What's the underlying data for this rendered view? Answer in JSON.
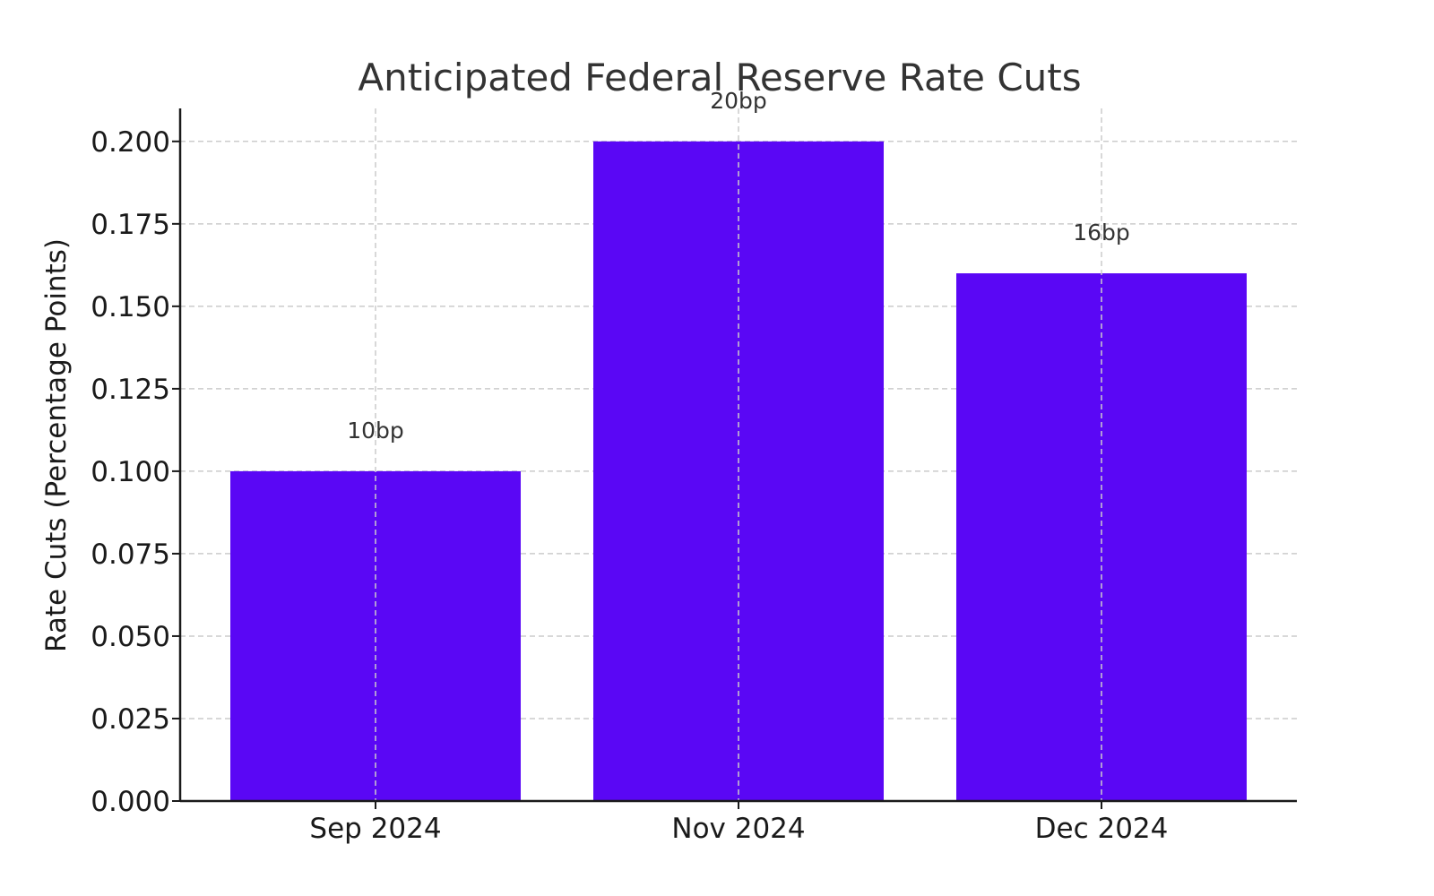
{
  "chart_data": {
    "type": "bar",
    "title": "Anticipated Federal Reserve Rate Cuts",
    "xlabel": "",
    "ylabel": "Rate Cuts (Percentage Points)",
    "categories": [
      "Sep 2024",
      "Nov 2024",
      "Dec 2024"
    ],
    "values": [
      0.1,
      0.2,
      0.16
    ],
    "data_labels": [
      "10bp",
      "20bp",
      "16bp"
    ],
    "ylim": [
      0,
      0.21
    ],
    "yticks": [
      0.0,
      0.025,
      0.05,
      0.075,
      0.1,
      0.125,
      0.15,
      0.175,
      0.2
    ],
    "ytick_labels": [
      "0.000",
      "0.025",
      "0.050",
      "0.075",
      "0.100",
      "0.125",
      "0.150",
      "0.175",
      "0.200"
    ],
    "grid": true,
    "bar_color": "#5a07f5"
  }
}
